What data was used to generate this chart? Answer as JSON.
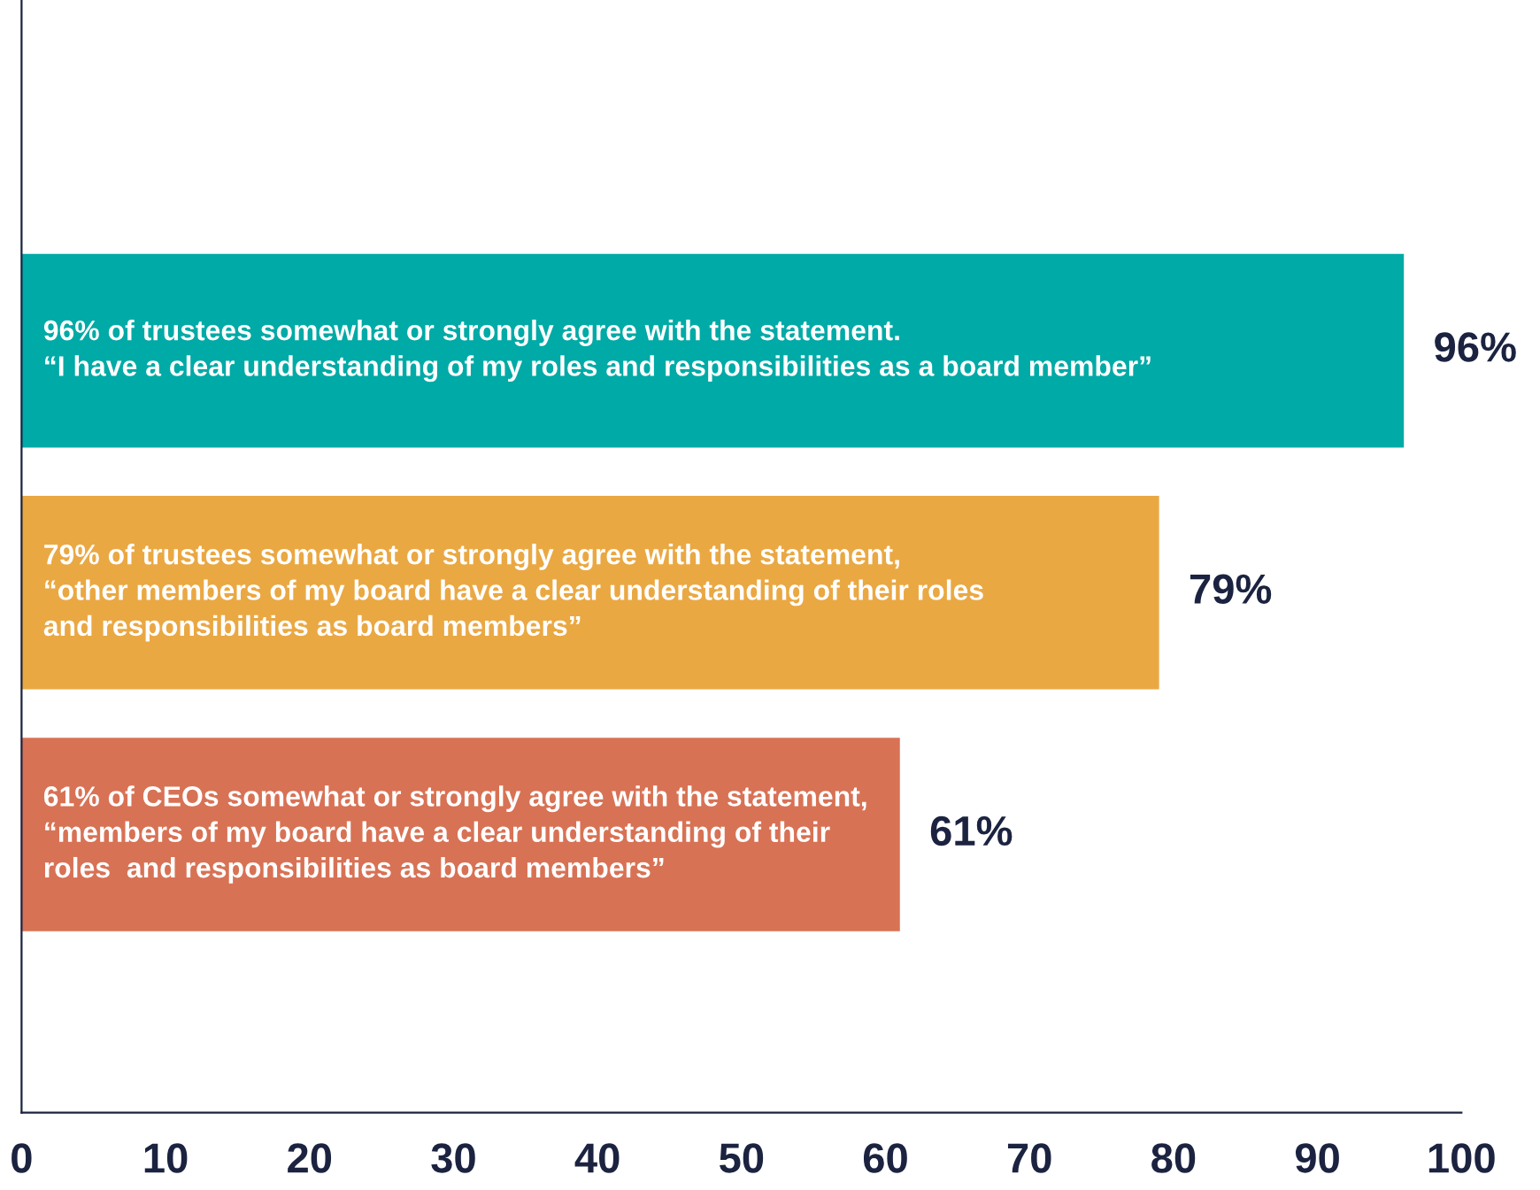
{
  "chart_data": {
    "type": "bar",
    "orientation": "horizontal",
    "categories": [
      "96% of trustees somewhat or strongly agree with the statement.\n“I have a clear understanding of my roles and responsibilities as a board member”",
      "79% of trustees somewhat or strongly agree with the statement,\n“other members of my board have a clear understanding of their roles\nand responsibilities as board members”",
      "61% of CEOs somewhat or strongly agree with the statement,\n“members of my board have a clear understanding of their\nroles  and responsibilities as board members”"
    ],
    "values": [
      96,
      79,
      61
    ],
    "colors": [
      "#00aaa6",
      "#eaa843",
      "#d87255"
    ],
    "value_labels": [
      "96%",
      "79%",
      "61%"
    ],
    "xlim": [
      0,
      100
    ],
    "xticks": [
      0,
      10,
      20,
      30,
      40,
      50,
      60,
      70,
      80,
      90,
      100
    ],
    "grid": false,
    "legend": false
  }
}
